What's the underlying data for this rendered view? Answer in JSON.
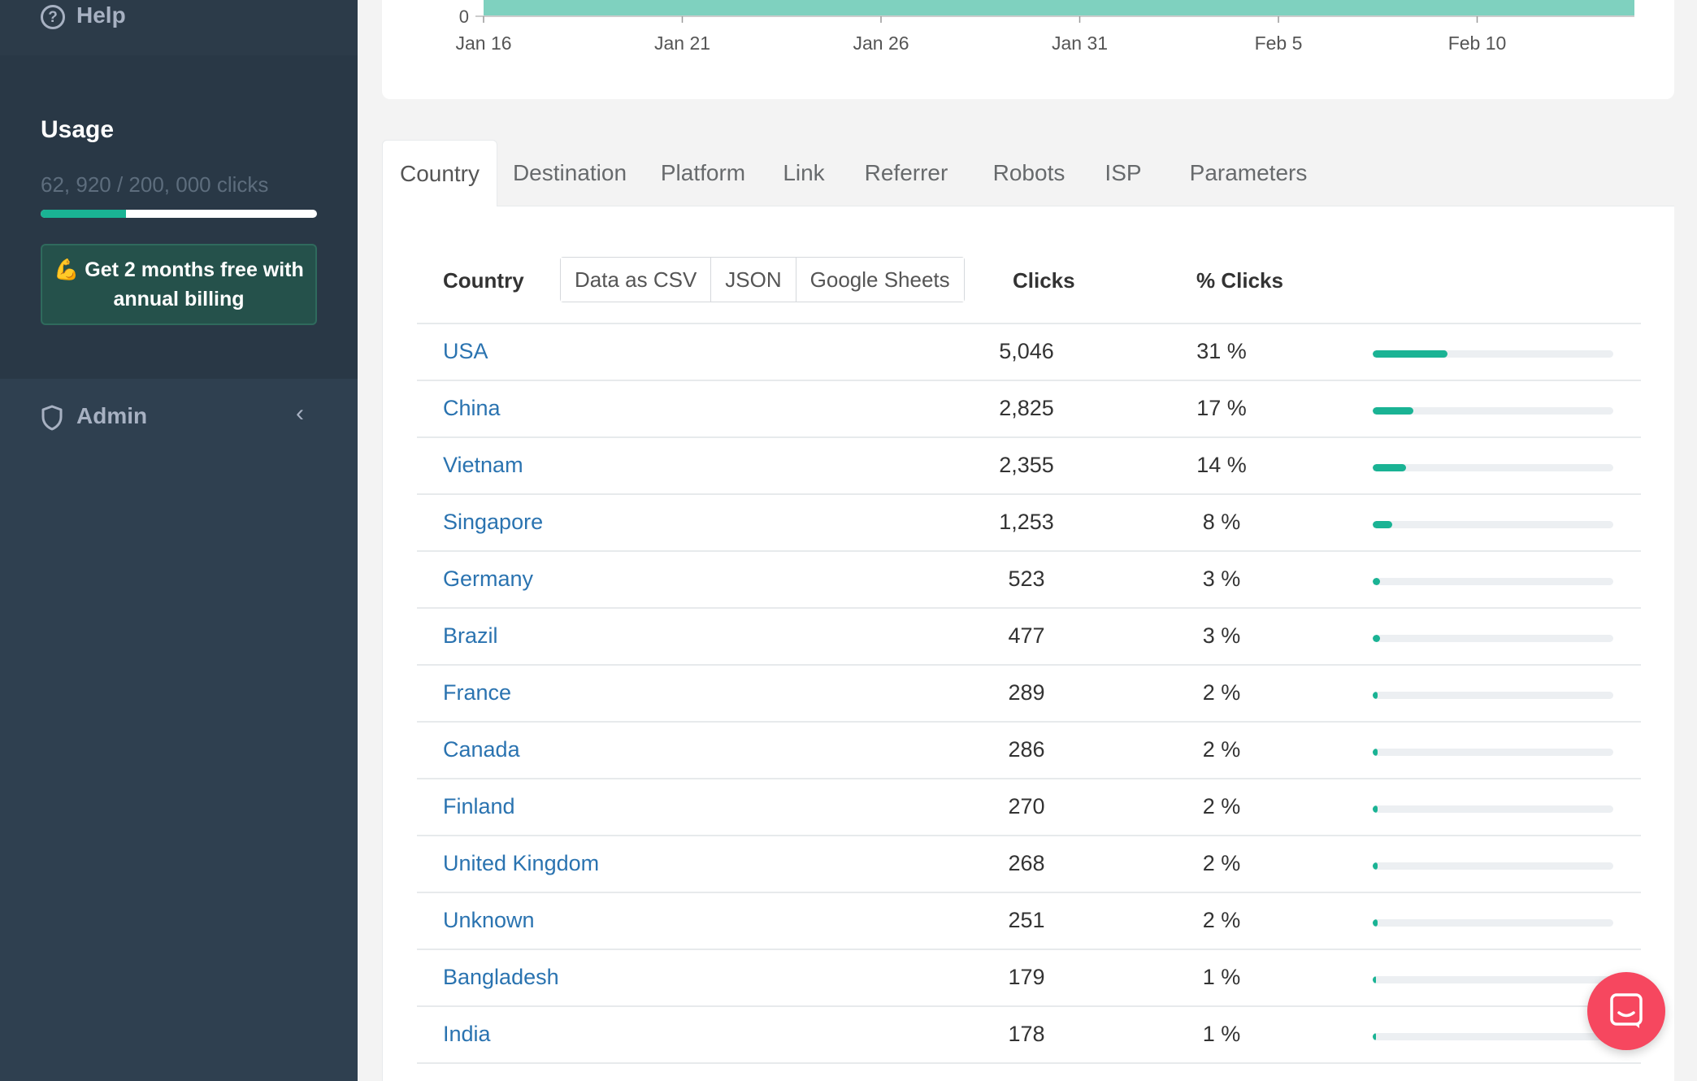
{
  "sidebar": {
    "help_label": "Help",
    "usage": {
      "title": "Usage",
      "count_text": "62, 920 / 200, 000 clicks",
      "progress_fraction": 0.31
    },
    "promo_text": "💪 Get 2 months free with annual billing",
    "admin_label": "Admin"
  },
  "chart_data": {
    "type": "area",
    "x_tick_labels": [
      "Jan 16",
      "Jan 21",
      "Jan 26",
      "Jan 31",
      "Feb 5",
      "Feb 10"
    ],
    "y_tick_labels": [
      "0"
    ]
  },
  "tabs": [
    "Country",
    "Destination",
    "Platform",
    "Link",
    "Referrer",
    "Robots",
    "ISP",
    "Parameters"
  ],
  "active_tab": "Country",
  "table": {
    "headers": {
      "country": "Country",
      "clicks": "Clicks",
      "pct": "% Clicks"
    },
    "export_buttons": [
      "Data as CSV",
      "JSON",
      "Google Sheets"
    ],
    "rows": [
      {
        "country": "USA",
        "clicks": "5,046",
        "pct": "31 %",
        "fraction": 0.31
      },
      {
        "country": "China",
        "clicks": "2,825",
        "pct": "17 %",
        "fraction": 0.17
      },
      {
        "country": "Vietnam",
        "clicks": "2,355",
        "pct": "14 %",
        "fraction": 0.14
      },
      {
        "country": "Singapore",
        "clicks": "1,253",
        "pct": "8 %",
        "fraction": 0.08
      },
      {
        "country": "Germany",
        "clicks": "523",
        "pct": "3 %",
        "fraction": 0.03
      },
      {
        "country": "Brazil",
        "clicks": "477",
        "pct": "3 %",
        "fraction": 0.03
      },
      {
        "country": "France",
        "clicks": "289",
        "pct": "2 %",
        "fraction": 0.02
      },
      {
        "country": "Canada",
        "clicks": "286",
        "pct": "2 %",
        "fraction": 0.02
      },
      {
        "country": "Finland",
        "clicks": "270",
        "pct": "2 %",
        "fraction": 0.02
      },
      {
        "country": "United Kingdom",
        "clicks": "268",
        "pct": "2 %",
        "fraction": 0.02
      },
      {
        "country": "Unknown",
        "clicks": "251",
        "pct": "2 %",
        "fraction": 0.02
      },
      {
        "country": "Bangladesh",
        "clicks": "179",
        "pct": "1 %",
        "fraction": 0.01
      },
      {
        "country": "India",
        "clicks": "178",
        "pct": "1 %",
        "fraction": 0.01
      }
    ]
  },
  "colors": {
    "sidebar_bg": "#2f4050",
    "accent": "#1ab394",
    "link": "#2a73b0",
    "area_fill": "#7fd1bf",
    "chat_button": "#f6475f"
  }
}
